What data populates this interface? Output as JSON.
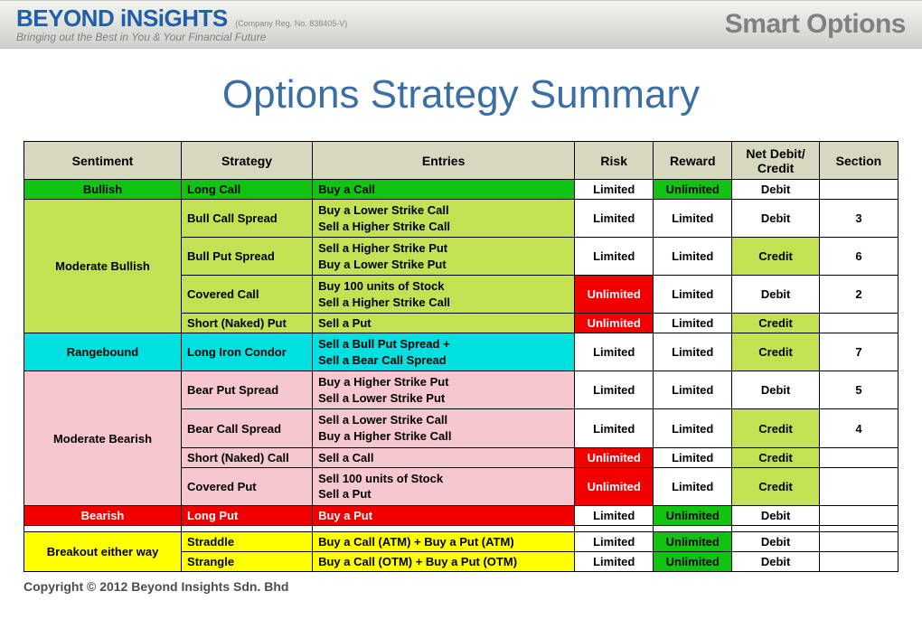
{
  "header": {
    "logo_main": "BEYOND iNSiGHTS",
    "logo_reg": "(Company Reg. No. 838405-V)",
    "logo_tag": "Bringing out the Best in You & Your Financial Future",
    "right_title": "Smart Options"
  },
  "title": "Options Strategy Summary",
  "copyright": "Copyright © 2012 Beyond Insights Sdn. Bhd",
  "colors": {
    "header_bg": "#d8d8c0",
    "green": "#12c412",
    "lime": "#c2e254",
    "cyan": "#00e0e0",
    "pink": "#f6c7ce",
    "red": "#f20000",
    "yellow": "#ffff00",
    "white": "#ffffff",
    "text_white": "#ffffff",
    "text_black": "#000000"
  },
  "col_widths_pct": [
    18,
    15,
    30,
    9,
    9,
    10,
    9
  ],
  "columns": [
    "Sentiment",
    "Strategy",
    "Entries",
    "Risk",
    "Reward",
    "Net Debit/ Credit",
    "Section"
  ],
  "rows": [
    {
      "cells": [
        {
          "t": "Bullish",
          "bg": "green",
          "align": "center"
        },
        {
          "t": "Long Call",
          "bg": "green",
          "align": "left"
        },
        {
          "t": "Buy a Call",
          "bg": "green",
          "align": "left"
        },
        {
          "t": "Limited",
          "bg": "white",
          "align": "center"
        },
        {
          "t": "Unlimited",
          "bg": "green",
          "align": "center"
        },
        {
          "t": "Debit",
          "bg": "white",
          "align": "center"
        },
        {
          "t": "",
          "bg": "white",
          "align": "center"
        }
      ]
    },
    {
      "cells": [
        {
          "t": "Moderate Bullish",
          "bg": "lime",
          "align": "center",
          "rowspan": 4
        },
        {
          "t": "Bull Call Spread",
          "bg": "lime",
          "align": "left"
        },
        {
          "t": [
            "Buy a Lower Strike Call",
            "Sell a Higher Strike Call"
          ],
          "bg": "lime",
          "align": "left"
        },
        {
          "t": "Limited",
          "bg": "white",
          "align": "center"
        },
        {
          "t": "Limited",
          "bg": "white",
          "align": "center"
        },
        {
          "t": "Debit",
          "bg": "white",
          "align": "center"
        },
        {
          "t": "3",
          "bg": "white",
          "align": "center"
        }
      ]
    },
    {
      "cells": [
        {
          "t": "Bull Put Spread",
          "bg": "lime",
          "align": "left"
        },
        {
          "t": [
            "Sell a Higher Strike Put",
            "Buy a Lower Strike Put"
          ],
          "bg": "lime",
          "align": "left"
        },
        {
          "t": "Limited",
          "bg": "white",
          "align": "center"
        },
        {
          "t": "Limited",
          "bg": "white",
          "align": "center"
        },
        {
          "t": "Credit",
          "bg": "lime",
          "align": "center"
        },
        {
          "t": "6",
          "bg": "white",
          "align": "center"
        }
      ]
    },
    {
      "cells": [
        {
          "t": "Covered Call",
          "bg": "lime",
          "align": "left"
        },
        {
          "t": [
            "Buy 100 units of Stock",
            "Sell a Higher Strike Call"
          ],
          "bg": "lime",
          "align": "left"
        },
        {
          "t": "Unlimited",
          "bg": "red",
          "align": "center",
          "fg": "white"
        },
        {
          "t": "Limited",
          "bg": "white",
          "align": "center"
        },
        {
          "t": "Debit",
          "bg": "white",
          "align": "center"
        },
        {
          "t": "2",
          "bg": "white",
          "align": "center"
        }
      ]
    },
    {
      "cells": [
        {
          "t": "Short (Naked) Put",
          "bg": "lime",
          "align": "left"
        },
        {
          "t": "Sell a Put",
          "bg": "lime",
          "align": "left"
        },
        {
          "t": "Unlimited",
          "bg": "red",
          "align": "center",
          "fg": "white"
        },
        {
          "t": "Limited",
          "bg": "white",
          "align": "center"
        },
        {
          "t": "Credit",
          "bg": "lime",
          "align": "center"
        },
        {
          "t": "",
          "bg": "white",
          "align": "center"
        }
      ]
    },
    {
      "cells": [
        {
          "t": "Rangebound",
          "bg": "cyan",
          "align": "center"
        },
        {
          "t": "Long Iron Condor",
          "bg": "cyan",
          "align": "left"
        },
        {
          "t": [
            "Sell a Bull Put Spread +",
            "Sell a Bear Call Spread"
          ],
          "bg": "cyan",
          "align": "left"
        },
        {
          "t": "Limited",
          "bg": "white",
          "align": "center"
        },
        {
          "t": "Limited",
          "bg": "white",
          "align": "center"
        },
        {
          "t": "Credit",
          "bg": "lime",
          "align": "center"
        },
        {
          "t": "7",
          "bg": "white",
          "align": "center"
        }
      ]
    },
    {
      "cells": [
        {
          "t": "Moderate Bearish",
          "bg": "pink",
          "align": "center",
          "rowspan": 4
        },
        {
          "t": "Bear Put Spread",
          "bg": "pink",
          "align": "left"
        },
        {
          "t": [
            "Buy a Higher Strike Put",
            "Sell a Lower Strike Put"
          ],
          "bg": "pink",
          "align": "left"
        },
        {
          "t": "Limited",
          "bg": "white",
          "align": "center"
        },
        {
          "t": "Limited",
          "bg": "white",
          "align": "center"
        },
        {
          "t": "Debit",
          "bg": "white",
          "align": "center"
        },
        {
          "t": "5",
          "bg": "white",
          "align": "center"
        }
      ]
    },
    {
      "cells": [
        {
          "t": "Bear Call Spread",
          "bg": "pink",
          "align": "left"
        },
        {
          "t": [
            "Sell a Lower Strike Call",
            "Buy a Higher Strike Call"
          ],
          "bg": "pink",
          "align": "left"
        },
        {
          "t": "Limited",
          "bg": "white",
          "align": "center"
        },
        {
          "t": "Limited",
          "bg": "white",
          "align": "center"
        },
        {
          "t": "Credit",
          "bg": "lime",
          "align": "center"
        },
        {
          "t": "4",
          "bg": "white",
          "align": "center"
        }
      ]
    },
    {
      "cells": [
        {
          "t": "Short (Naked) Call",
          "bg": "pink",
          "align": "left"
        },
        {
          "t": "Sell a Call",
          "bg": "pink",
          "align": "left"
        },
        {
          "t": "Unlimited",
          "bg": "red",
          "align": "center",
          "fg": "white"
        },
        {
          "t": "Limited",
          "bg": "white",
          "align": "center"
        },
        {
          "t": "Credit",
          "bg": "lime",
          "align": "center"
        },
        {
          "t": "",
          "bg": "white",
          "align": "center"
        }
      ]
    },
    {
      "cells": [
        {
          "t": "Covered Put",
          "bg": "pink",
          "align": "left"
        },
        {
          "t": [
            "Sell 100 units of Stock",
            "Sell a Put"
          ],
          "bg": "pink",
          "align": "left"
        },
        {
          "t": "Unlimited",
          "bg": "red",
          "align": "center",
          "fg": "white"
        },
        {
          "t": "Limited",
          "bg": "white",
          "align": "center"
        },
        {
          "t": "Credit",
          "bg": "lime",
          "align": "center"
        },
        {
          "t": "",
          "bg": "white",
          "align": "center"
        }
      ]
    },
    {
      "cells": [
        {
          "t": "Bearish",
          "bg": "red",
          "align": "center",
          "fg": "white"
        },
        {
          "t": "Long Put",
          "bg": "red",
          "align": "left",
          "fg": "white"
        },
        {
          "t": "Buy a Put",
          "bg": "red",
          "align": "left",
          "fg": "white"
        },
        {
          "t": "Limited",
          "bg": "white",
          "align": "center"
        },
        {
          "t": "Unlimited",
          "bg": "green",
          "align": "center"
        },
        {
          "t": "Debit",
          "bg": "white",
          "align": "center"
        },
        {
          "t": "",
          "bg": "white",
          "align": "center"
        }
      ]
    },
    {
      "cells": [
        {
          "t": "",
          "bg": "white",
          "align": "center"
        },
        {
          "t": "",
          "bg": "white",
          "align": "left"
        },
        {
          "t": "",
          "bg": "white",
          "align": "left"
        },
        {
          "t": "",
          "bg": "white",
          "align": "center"
        },
        {
          "t": "",
          "bg": "white",
          "align": "center"
        },
        {
          "t": "",
          "bg": "white",
          "align": "center"
        },
        {
          "t": "",
          "bg": "white",
          "align": "center"
        }
      ]
    },
    {
      "cells": [
        {
          "t": "Breakout either way",
          "bg": "yellow",
          "align": "center",
          "rowspan": 2
        },
        {
          "t": "Straddle",
          "bg": "yellow",
          "align": "left"
        },
        {
          "t": "Buy a Call (ATM) + Buy a Put (ATM)",
          "bg": "yellow",
          "align": "left"
        },
        {
          "t": "Limited",
          "bg": "white",
          "align": "center"
        },
        {
          "t": "Unlimited",
          "bg": "green",
          "align": "center"
        },
        {
          "t": "Debit",
          "bg": "white",
          "align": "center"
        },
        {
          "t": "",
          "bg": "white",
          "align": "center"
        }
      ]
    },
    {
      "cells": [
        {
          "t": "Strangle",
          "bg": "yellow",
          "align": "left"
        },
        {
          "t": "Buy a Call (OTM) + Buy a Put (OTM)",
          "bg": "yellow",
          "align": "left"
        },
        {
          "t": "Limited",
          "bg": "white",
          "align": "center"
        },
        {
          "t": "Unlimited",
          "bg": "green",
          "align": "center"
        },
        {
          "t": "Debit",
          "bg": "white",
          "align": "center"
        },
        {
          "t": "",
          "bg": "white",
          "align": "center"
        }
      ]
    }
  ]
}
